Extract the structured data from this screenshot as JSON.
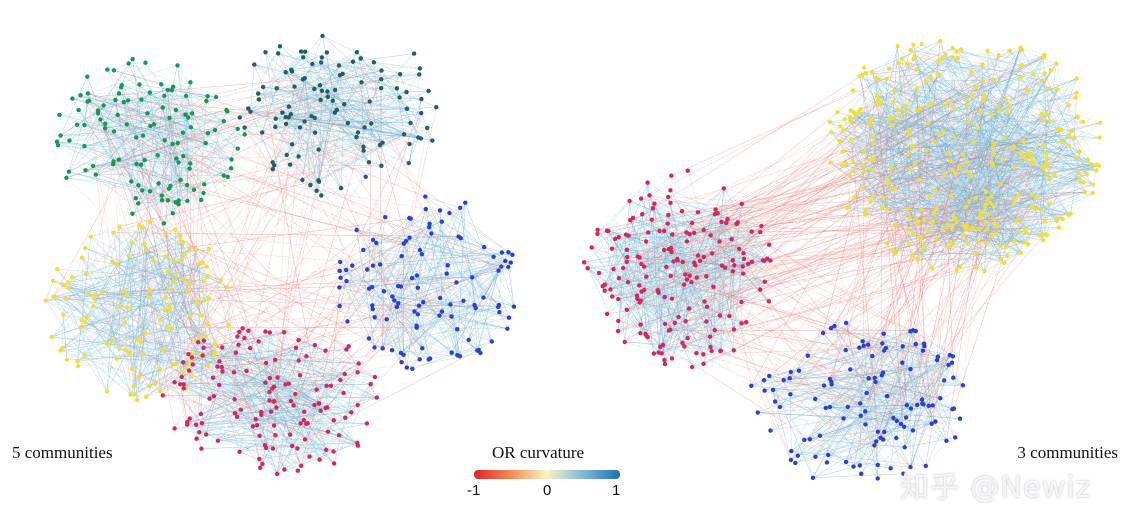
{
  "panels": [
    {
      "label": "5 communities",
      "communities": [
        {
          "name": "community-green",
          "color": "#119955"
        },
        {
          "name": "community-teal",
          "color": "#1f5f66"
        },
        {
          "name": "community-yellow",
          "color": "#f2de3a"
        },
        {
          "name": "community-blue",
          "color": "#2a3fd8"
        },
        {
          "name": "community-red",
          "color": "#d8245e"
        }
      ]
    },
    {
      "label": "3 communities",
      "communities": [
        {
          "name": "community-yellow",
          "color": "#f2de3a"
        },
        {
          "name": "community-red",
          "color": "#d8245e"
        },
        {
          "name": "community-blue",
          "color": "#2a3fd8"
        }
      ]
    }
  ],
  "colorbar": {
    "title": "OR curvature",
    "ticks": [
      "-1",
      "0",
      "1"
    ],
    "colors": [
      "#e0242a",
      "#f7f5c4",
      "#1f6fb6"
    ]
  },
  "watermark": "知乎 @Newiz"
}
